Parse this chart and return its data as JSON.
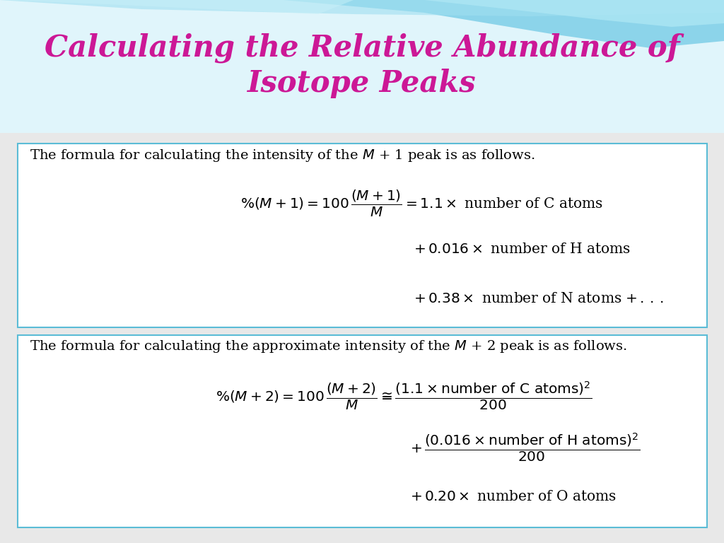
{
  "title_line1": "Calculating the Relative Abundance of",
  "title_line2": "Isotope Peaks",
  "title_color": "#CC1896",
  "box_border_color": "#5bbcd6",
  "wave_color1": "#7ecfe8",
  "wave_color2": "#a8e8f5",
  "wave_color3": "#c5f0f8",
  "bg_color": "#e8e8e8",
  "header_bg": "#daf4fa",
  "box_bg": "#ffffff",
  "text_color": "#000000"
}
